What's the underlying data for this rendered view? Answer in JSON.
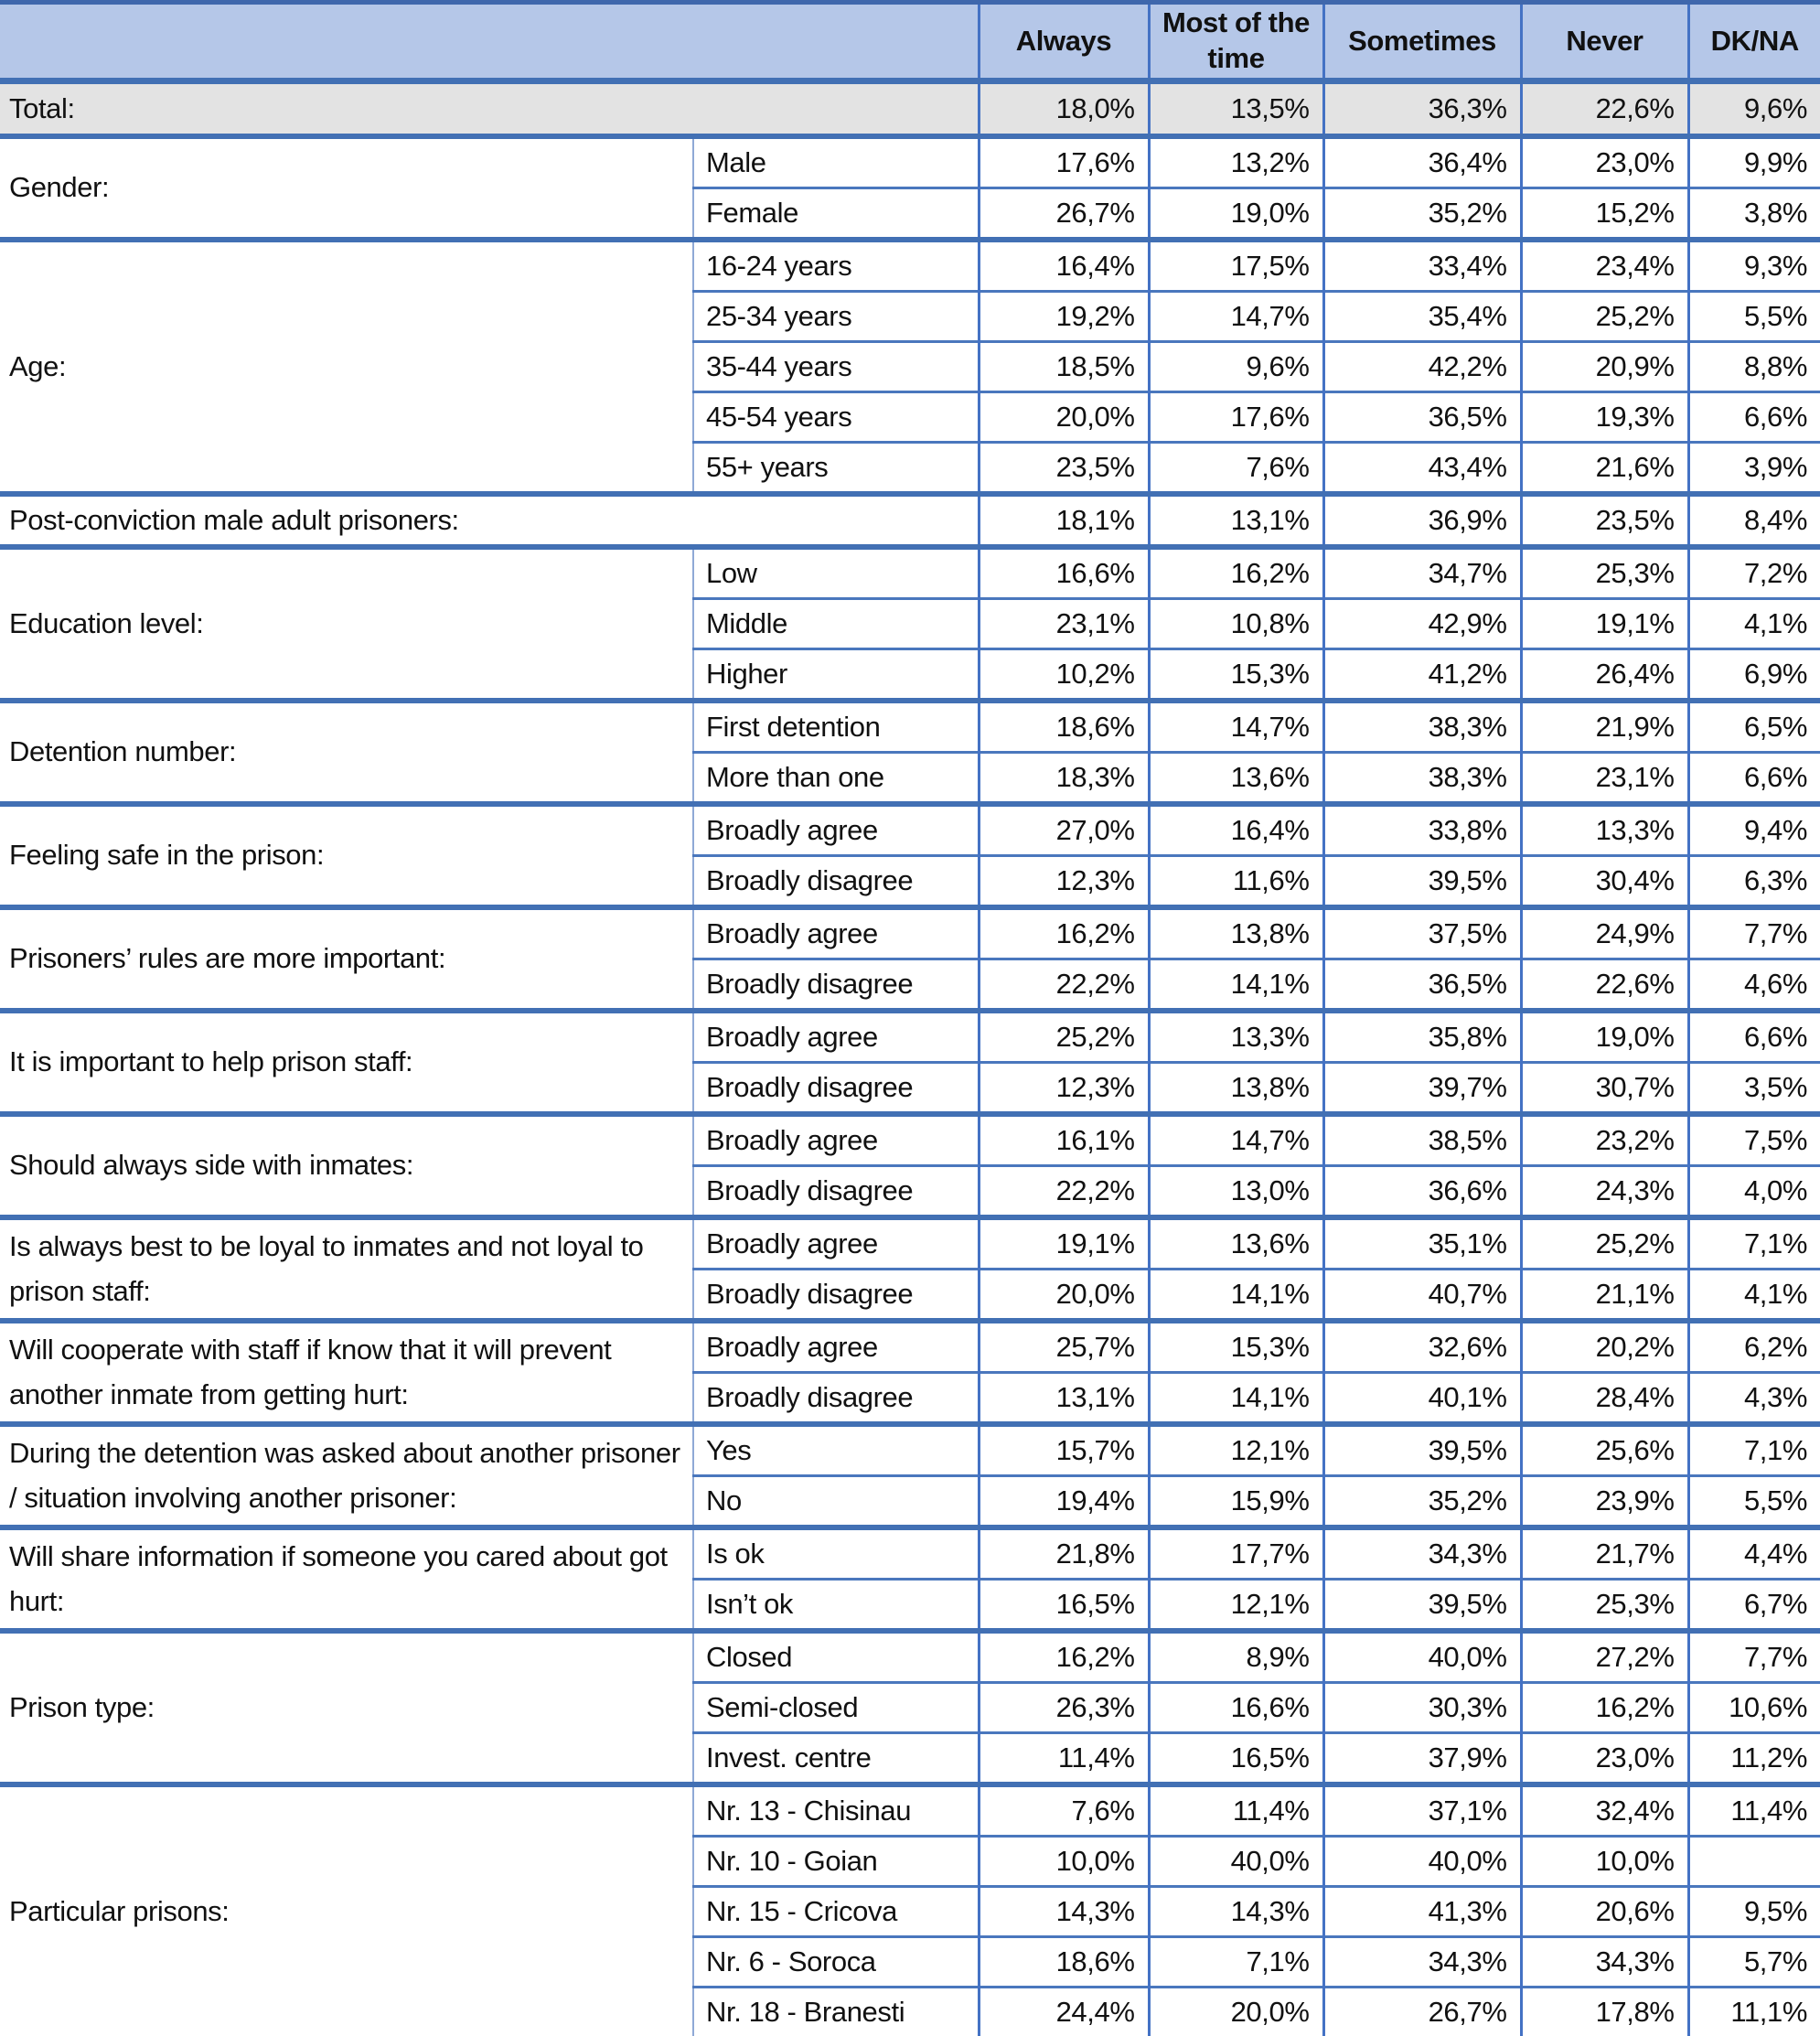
{
  "document_title": "Survey results table: prisoner cooperation attitudes by demographic breakdowns",
  "colors": {
    "header_bg": "#b5c7e8",
    "total_row_bg": "#e3e3e3",
    "border_blue": "#4472c4",
    "thick_separator_blue": "#4270b4",
    "text": "#111111"
  },
  "table": {
    "columns": [
      "Always",
      "Most of the time",
      "Sometimes",
      "Never",
      "DK/NA"
    ],
    "corner_label": "",
    "groups": [
      {
        "label": "Total:",
        "shaded": true,
        "rows": [
          {
            "sub": null,
            "values": [
              "18,0%",
              "13,5%",
              "36,3%",
              "22,6%",
              "9,6%"
            ]
          }
        ]
      },
      {
        "label": "Gender:",
        "rows": [
          {
            "sub": "Male",
            "values": [
              "17,6%",
              "13,2%",
              "36,4%",
              "23,0%",
              "9,9%"
            ]
          },
          {
            "sub": "Female",
            "values": [
              "26,7%",
              "19,0%",
              "35,2%",
              "15,2%",
              "3,8%"
            ]
          }
        ]
      },
      {
        "label": "Age:",
        "rows": [
          {
            "sub": "16-24 years",
            "values": [
              "16,4%",
              "17,5%",
              "33,4%",
              "23,4%",
              "9,3%"
            ]
          },
          {
            "sub": "25-34 years",
            "values": [
              "19,2%",
              "14,7%",
              "35,4%",
              "25,2%",
              "5,5%"
            ]
          },
          {
            "sub": "35-44 years",
            "values": [
              "18,5%",
              "9,6%",
              "42,2%",
              "20,9%",
              "8,8%"
            ]
          },
          {
            "sub": "45-54 years",
            "values": [
              "20,0%",
              "17,6%",
              "36,5%",
              "19,3%",
              "6,6%"
            ]
          },
          {
            "sub": "55+ years",
            "values": [
              "23,5%",
              "7,6%",
              "43,4%",
              "21,6%",
              "3,9%"
            ]
          }
        ]
      },
      {
        "label": "Post-conviction male adult prisoners:",
        "rows": [
          {
            "sub": null,
            "values": [
              "18,1%",
              "13,1%",
              "36,9%",
              "23,5%",
              "8,4%"
            ]
          }
        ]
      },
      {
        "label": "Education level:",
        "rows": [
          {
            "sub": "Low",
            "values": [
              "16,6%",
              "16,2%",
              "34,7%",
              "25,3%",
              "7,2%"
            ]
          },
          {
            "sub": "Middle",
            "values": [
              "23,1%",
              "10,8%",
              "42,9%",
              "19,1%",
              "4,1%"
            ]
          },
          {
            "sub": "Higher",
            "values": [
              "10,2%",
              "15,3%",
              "41,2%",
              "26,4%",
              "6,9%"
            ]
          }
        ]
      },
      {
        "label": "Detention number:",
        "rows": [
          {
            "sub": "First detention",
            "values": [
              "18,6%",
              "14,7%",
              "38,3%",
              "21,9%",
              "6,5%"
            ]
          },
          {
            "sub": "More than one",
            "values": [
              "18,3%",
              "13,6%",
              "38,3%",
              "23,1%",
              "6,6%"
            ]
          }
        ]
      },
      {
        "label": "Feeling safe in the prison:",
        "rows": [
          {
            "sub": "Broadly agree",
            "values": [
              "27,0%",
              "16,4%",
              "33,8%",
              "13,3%",
              "9,4%"
            ]
          },
          {
            "sub": "Broadly disagree",
            "values": [
              "12,3%",
              "11,6%",
              "39,5%",
              "30,4%",
              "6,3%"
            ]
          }
        ]
      },
      {
        "label": "Prisoners’ rules are more important:",
        "rows": [
          {
            "sub": "Broadly agree",
            "values": [
              "16,2%",
              "13,8%",
              "37,5%",
              "24,9%",
              "7,7%"
            ]
          },
          {
            "sub": "Broadly disagree",
            "values": [
              "22,2%",
              "14,1%",
              "36,5%",
              "22,6%",
              "4,6%"
            ]
          }
        ]
      },
      {
        "label": "It is important to help prison staff:",
        "rows": [
          {
            "sub": "Broadly agree",
            "values": [
              "25,2%",
              "13,3%",
              "35,8%",
              "19,0%",
              "6,6%"
            ]
          },
          {
            "sub": "Broadly disagree",
            "values": [
              "12,3%",
              "13,8%",
              "39,7%",
              "30,7%",
              "3,5%"
            ]
          }
        ]
      },
      {
        "label": "Should always side with inmates:",
        "rows": [
          {
            "sub": "Broadly agree",
            "values": [
              "16,1%",
              "14,7%",
              "38,5%",
              "23,2%",
              "7,5%"
            ]
          },
          {
            "sub": "Broadly disagree",
            "values": [
              "22,2%",
              "13,0%",
              "36,6%",
              "24,3%",
              "4,0%"
            ]
          }
        ]
      },
      {
        "label": "Is always best to be loyal to inmates and not loyal to prison staff:",
        "rows": [
          {
            "sub": "Broadly agree",
            "values": [
              "19,1%",
              "13,6%",
              "35,1%",
              "25,2%",
              "7,1%"
            ]
          },
          {
            "sub": "Broadly disagree",
            "values": [
              "20,0%",
              "14,1%",
              "40,7%",
              "21,1%",
              "4,1%"
            ]
          }
        ]
      },
      {
        "label": "Will cooperate with staff if know that it will prevent another inmate from getting hurt:",
        "rows": [
          {
            "sub": "Broadly agree",
            "values": [
              "25,7%",
              "15,3%",
              "32,6%",
              "20,2%",
              "6,2%"
            ]
          },
          {
            "sub": "Broadly disagree",
            "values": [
              "13,1%",
              "14,1%",
              "40,1%",
              "28,4%",
              "4,3%"
            ]
          }
        ]
      },
      {
        "label": "During the detention was asked about another prisoner / situation involving another prisoner:",
        "rows": [
          {
            "sub": "Yes",
            "values": [
              "15,7%",
              "12,1%",
              "39,5%",
              "25,6%",
              "7,1%"
            ]
          },
          {
            "sub": "No",
            "values": [
              "19,4%",
              "15,9%",
              "35,2%",
              "23,9%",
              "5,5%"
            ]
          }
        ]
      },
      {
        "label": "Will share information if someone you cared about got hurt:",
        "rows": [
          {
            "sub": "Is ok",
            "values": [
              "21,8%",
              "17,7%",
              "34,3%",
              "21,7%",
              "4,4%"
            ]
          },
          {
            "sub": "Isn’t ok",
            "values": [
              "16,5%",
              "12,1%",
              "39,5%",
              "25,3%",
              "6,7%"
            ]
          }
        ]
      },
      {
        "label": "Prison type:",
        "rows": [
          {
            "sub": "Closed",
            "values": [
              "16,2%",
              "8,9%",
              "40,0%",
              "27,2%",
              "7,7%"
            ]
          },
          {
            "sub": "Semi-closed",
            "values": [
              "26,3%",
              "16,6%",
              "30,3%",
              "16,2%",
              "10,6%"
            ]
          },
          {
            "sub": "Invest. centre",
            "values": [
              "11,4%",
              "16,5%",
              "37,9%",
              "23,0%",
              "11,2%"
            ]
          }
        ]
      },
      {
        "label": "Particular prisons:",
        "rows": [
          {
            "sub": "Nr. 13 - Chisinau",
            "values": [
              "7,6%",
              "11,4%",
              "37,1%",
              "32,4%",
              "11,4%"
            ]
          },
          {
            "sub": "Nr. 10 - Goian",
            "values": [
              "10,0%",
              "40,0%",
              "40,0%",
              "10,0%",
              ""
            ]
          },
          {
            "sub": "Nr. 15 - Cricova",
            "values": [
              "14,3%",
              "14,3%",
              "41,3%",
              "20,6%",
              "9,5%"
            ]
          },
          {
            "sub": "Nr. 6 - Soroca",
            "values": [
              "18,6%",
              "7,1%",
              "34,3%",
              "34,3%",
              "5,7%"
            ]
          },
          {
            "sub": "Nr. 18 - Branesti",
            "values": [
              "24,4%",
              "20,0%",
              "26,7%",
              "17,8%",
              "11,1%"
            ]
          }
        ]
      }
    ]
  }
}
